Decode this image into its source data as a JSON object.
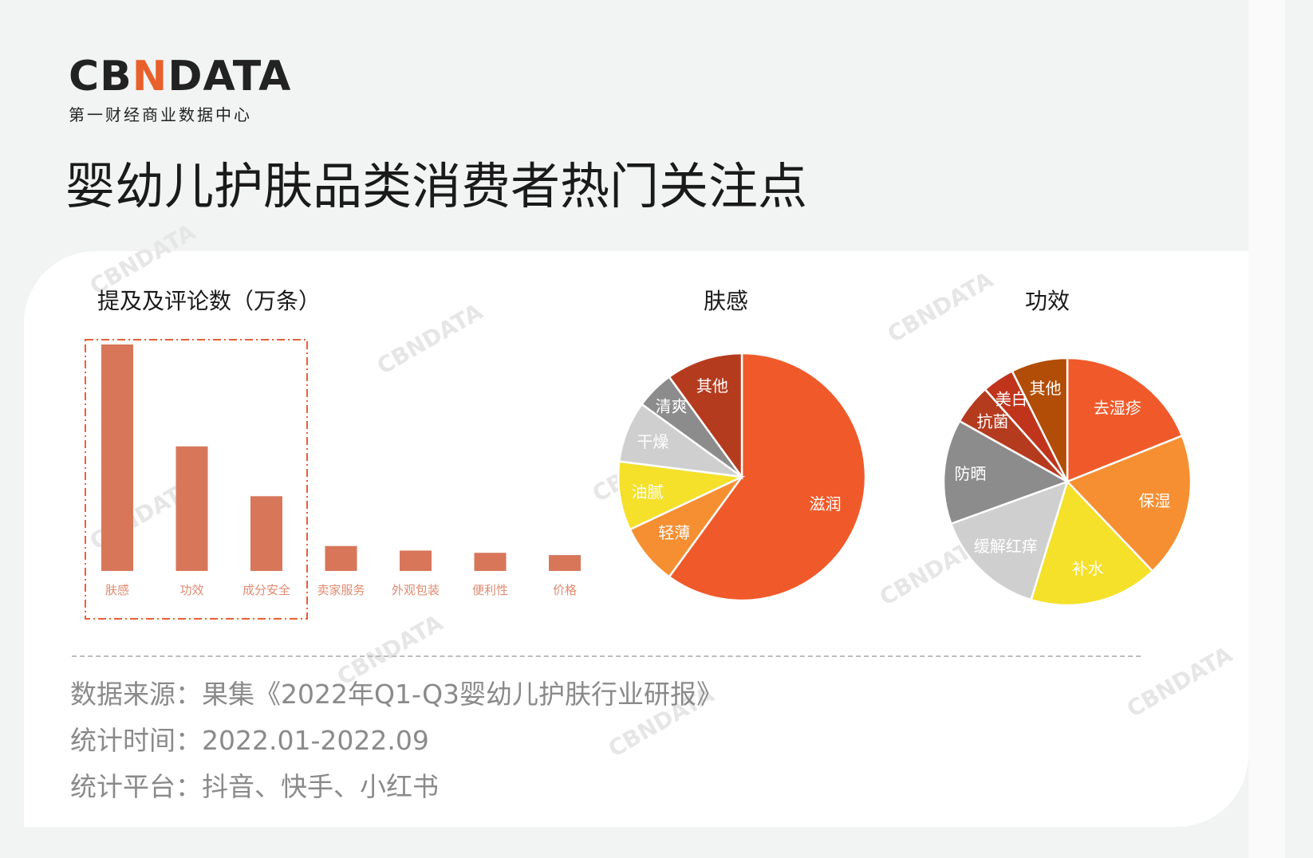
{
  "brand": {
    "logo_text_left": "CB",
    "logo_text_accent": "N",
    "logo_text_right": "DATA",
    "logo_subtitle": "第一财经商业数据中心",
    "watermark": "CBNDATA"
  },
  "page_title": "婴幼儿护肤品类消费者热门关注点",
  "colors": {
    "bar": "#d8765a",
    "bar_label": "#e08a70",
    "highlight_box": "#e6603a"
  },
  "chart_data": [
    {
      "type": "bar",
      "title": "提及及评论数（万条）",
      "categories": [
        "肤感",
        "功效",
        "成分安全",
        "卖家服务",
        "外观包装",
        "便利性",
        "价格"
      ],
      "values": [
        100,
        55,
        33,
        11,
        9,
        8,
        7
      ],
      "ylim": [
        0,
        100
      ],
      "grid": false,
      "highlighted": [
        "肤感",
        "功效",
        "成分安全"
      ]
    },
    {
      "type": "pie",
      "title": "肤感",
      "labels": [
        "滋润",
        "轻薄",
        "油腻",
        "干燥",
        "清爽",
        "其他"
      ],
      "values": [
        60,
        8,
        9,
        8,
        5,
        10
      ],
      "colors": [
        "#f05a2b",
        "#f58f32",
        "#f5e02a",
        "#cfcfcf",
        "#8c8c8c",
        "#b53b1f"
      ]
    },
    {
      "type": "pie",
      "title": "功效",
      "labels": [
        "去湿疹",
        "保湿",
        "补水",
        "缓解红痒",
        "防晒",
        "抗菌",
        "美白",
        "其他"
      ],
      "values": [
        18,
        18,
        16,
        14,
        13,
        5,
        4,
        7
      ],
      "colors": [
        "#f05a2b",
        "#f58f32",
        "#f5e02a",
        "#cfcfcf",
        "#8c8c8c",
        "#b53b1f",
        "#c0341c",
        "#b14d06"
      ]
    }
  ],
  "footnotes": {
    "source": "数据来源：果集《2022年Q1-Q3婴幼儿护肤行业研报》",
    "period": "统计时间：2022.01-2022.09",
    "platforms": "统计平台：抖音、快手、小红书"
  }
}
